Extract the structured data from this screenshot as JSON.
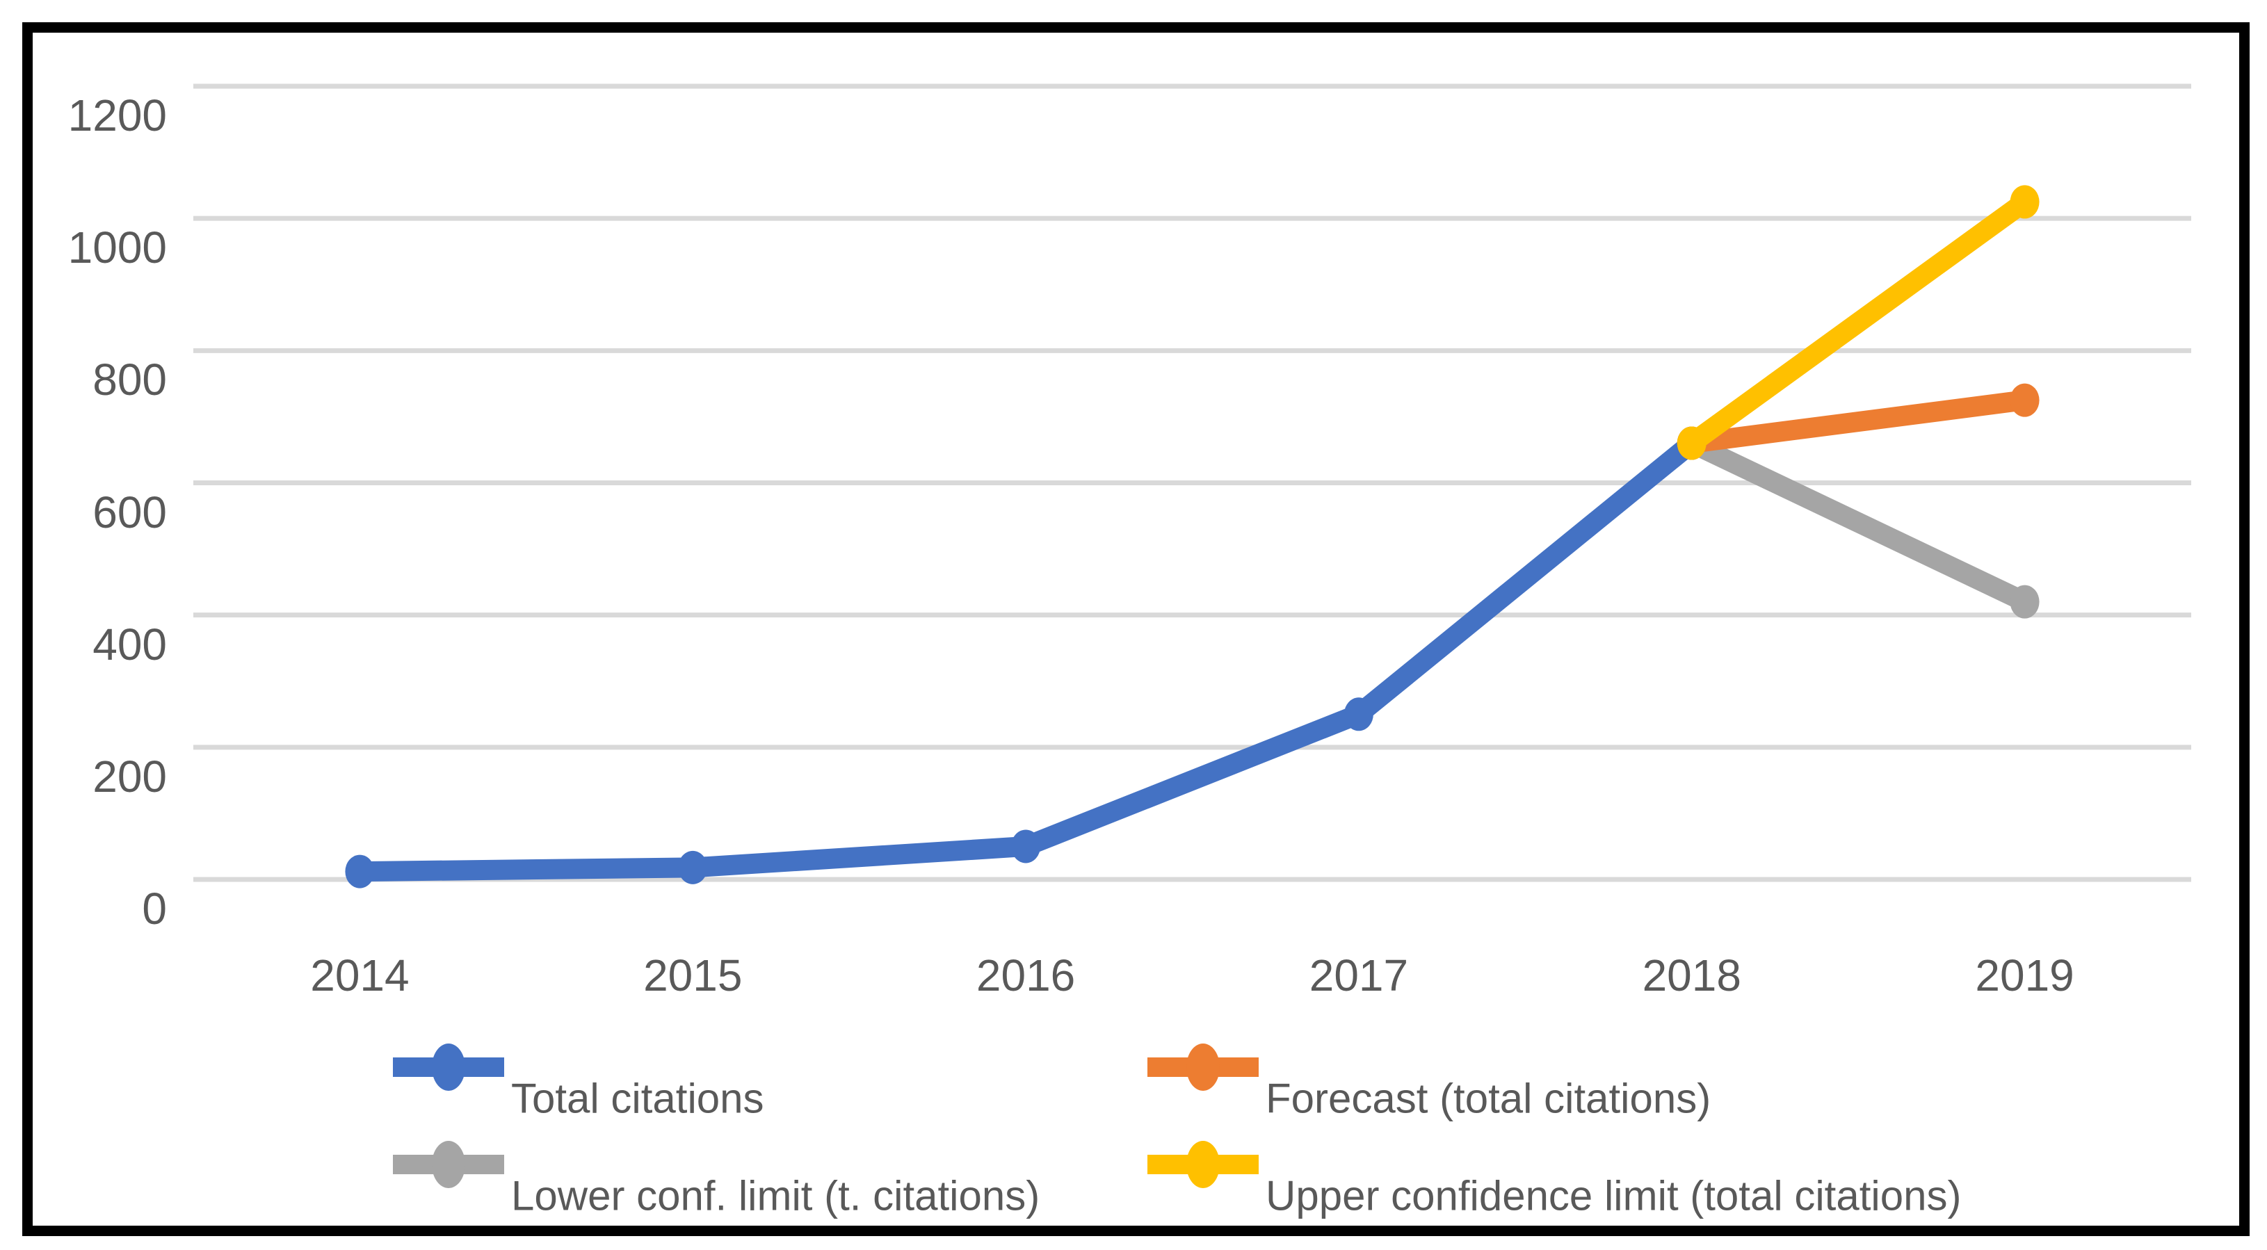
{
  "colors": {
    "background": "#FFFFFF",
    "frame": "#000000",
    "gridline": "#D9D9D9",
    "axis_text": "#595959",
    "series_blue": "#4472C4",
    "series_orange": "#ED7D31",
    "series_gray": "#A5A5A5",
    "series_yellow": "#FFC000"
  },
  "chart_data": {
    "type": "line",
    "title": "",
    "xlabel": "",
    "ylabel": "",
    "categories": [
      "2014",
      "2015",
      "2016",
      "2017",
      "2018",
      "2019"
    ],
    "y_ticks": [
      "0",
      "200",
      "400",
      "600",
      "800",
      "1000",
      "1200"
    ],
    "ylim": [
      0,
      1200
    ],
    "grid": true,
    "legend_position": "bottom",
    "series": [
      {
        "name": "Total citations",
        "color": "#4472C4",
        "start": 0,
        "values": [
          12,
          18,
          50,
          250,
          660
        ]
      },
      {
        "name": "Forecast (total citations)",
        "color": "#ED7D31",
        "start": 4,
        "values": [
          660,
          725
        ]
      },
      {
        "name": "Lower conf. limit (t. citations)",
        "color": "#A5A5A5",
        "start": 4,
        "values": [
          660,
          420
        ]
      },
      {
        "name": "Upper confidence limit (total citations)",
        "color": "#FFC000",
        "start": 4,
        "values": [
          660,
          1025
        ]
      }
    ]
  }
}
